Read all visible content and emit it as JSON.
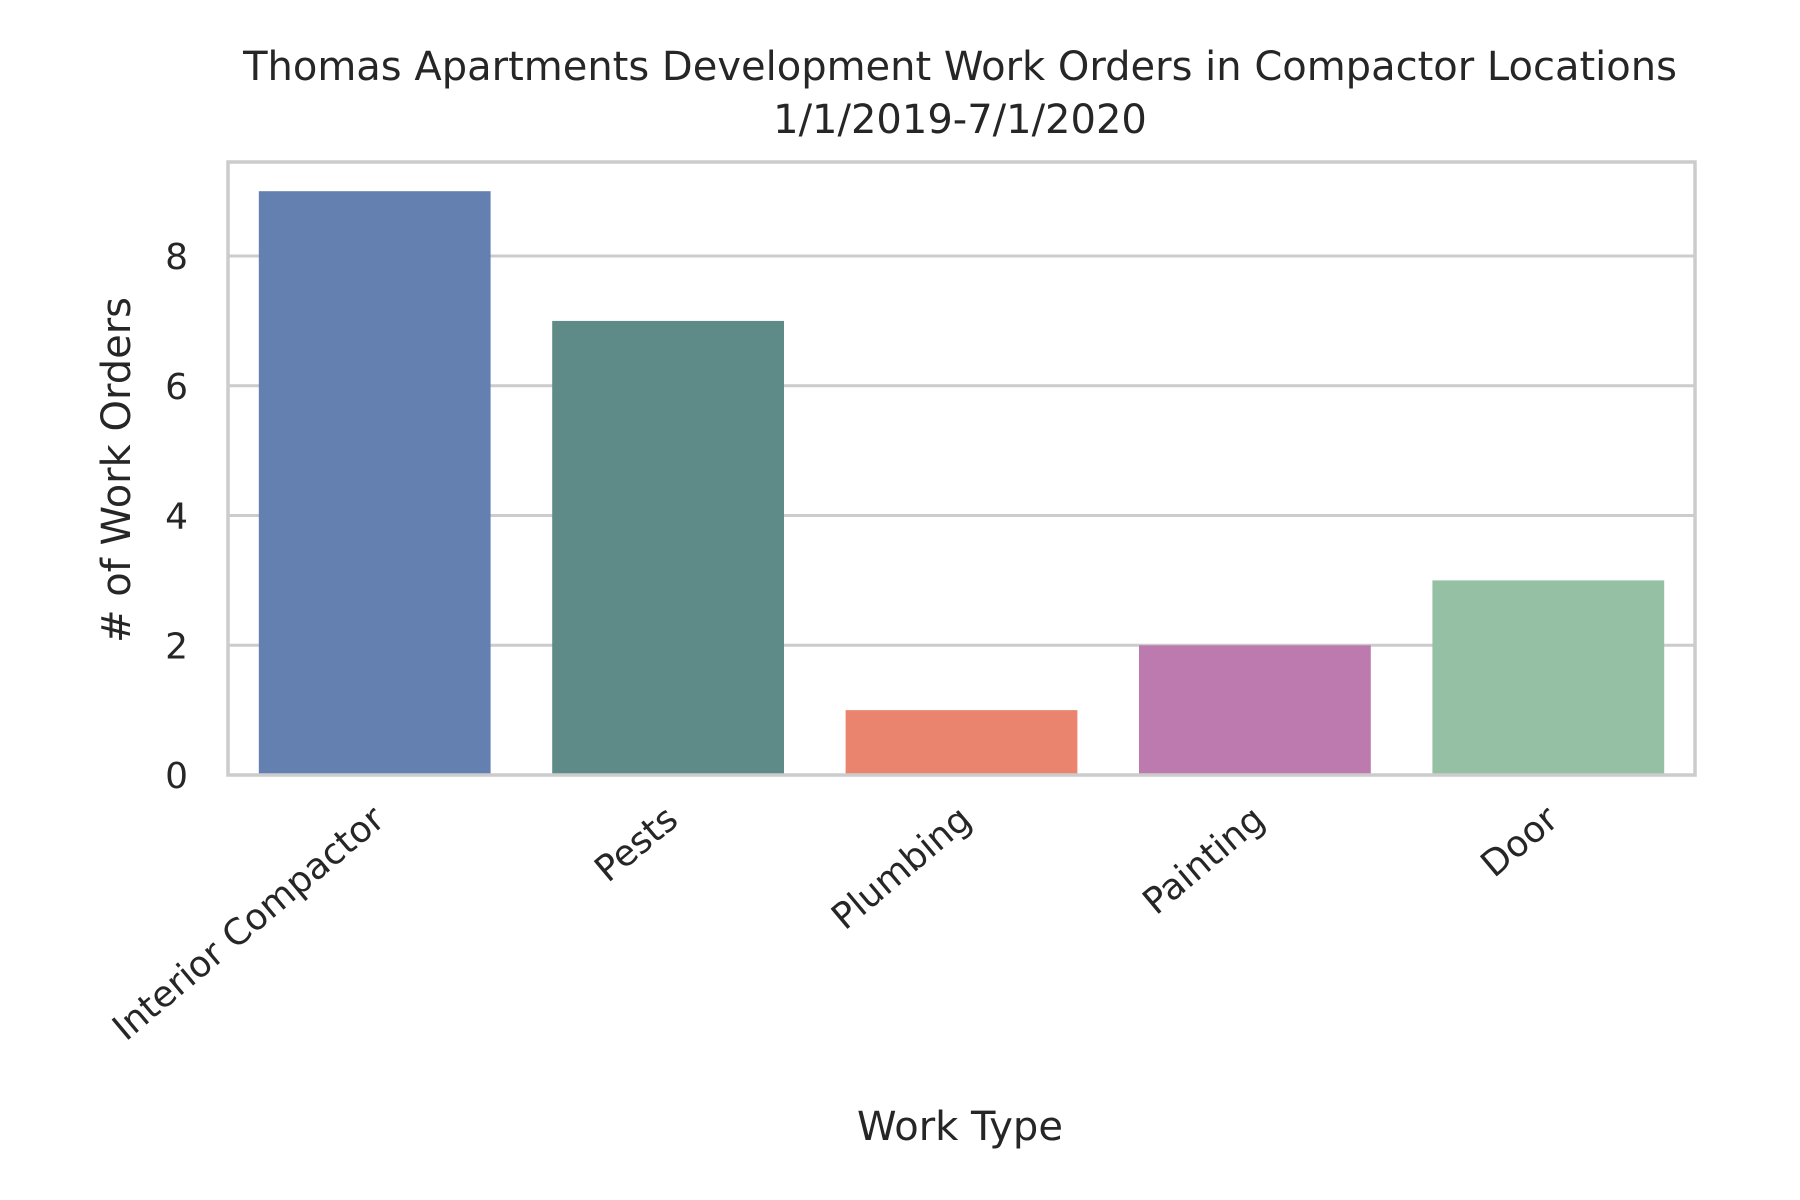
{
  "chart_data": {
    "type": "bar",
    "title": "Thomas Apartments Development Work Orders in Compactor Locations",
    "subtitle": "1/1/2019-7/1/2020",
    "xlabel": "Work Type",
    "ylabel": "# of Work Orders",
    "categories": [
      "Interior Compactor",
      "Pests",
      "Plumbing",
      "Painting",
      "Door"
    ],
    "values": [
      9,
      7,
      1,
      2,
      3
    ],
    "colors": [
      "#6480b1",
      "#5e8a88",
      "#ea846e",
      "#bd7aae",
      "#96c0a4"
    ],
    "ylim": [
      0,
      9.45
    ],
    "yticks": [
      0,
      2,
      4,
      6,
      8
    ],
    "ytick_labels": [
      "0",
      "2",
      "4",
      "6",
      "8"
    ],
    "grid": true,
    "grid_axis": "y"
  }
}
